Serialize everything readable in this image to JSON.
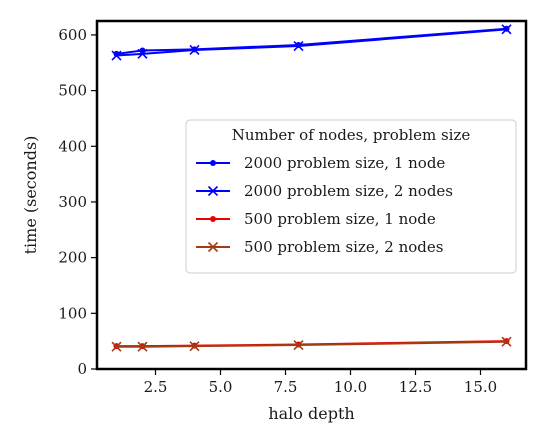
{
  "chart_data": {
    "type": "line",
    "title": "",
    "xlabel": "halo depth",
    "ylabel": "time (seconds)",
    "xlim": [
      0.25,
      16.75
    ],
    "ylim": [
      0,
      625
    ],
    "xticks": [
      2.5,
      5.0,
      7.5,
      10.0,
      12.5,
      15.0
    ],
    "xtick_labels": [
      "2.5",
      "5.0",
      "7.5",
      "10.0",
      "12.5",
      "15.0"
    ],
    "yticks": [
      0,
      100,
      200,
      300,
      400,
      500,
      600
    ],
    "ytick_labels": [
      "0",
      "100",
      "200",
      "300",
      "400",
      "500",
      "600"
    ],
    "grid": false,
    "legend": {
      "title": "Number of nodes, problem size",
      "placement": "center-right"
    },
    "series": [
      {
        "name": "2000 problem size, 1 node",
        "color": "#0000ff",
        "marker": "dot",
        "x": [
          1,
          2,
          4,
          8,
          16
        ],
        "y": [
          566,
          572,
          574,
          582,
          611
        ]
      },
      {
        "name": "2000 problem size, 2 nodes",
        "color": "#0000ff",
        "marker": "x",
        "x": [
          1,
          2,
          4,
          8,
          16
        ],
        "y": [
          563,
          566,
          573,
          580,
          610
        ]
      },
      {
        "name": "500 problem size, 1 node",
        "color": "#ee0000",
        "marker": "dot",
        "x": [
          1,
          2,
          4,
          8,
          16
        ],
        "y": [
          41,
          41,
          42,
          44,
          50
        ]
      },
      {
        "name": "500 problem size, 2 nodes",
        "color": "#a23c14",
        "marker": "x",
        "x": [
          1,
          2,
          4,
          8,
          16
        ],
        "y": [
          40,
          40,
          41,
          43,
          49
        ]
      }
    ]
  }
}
